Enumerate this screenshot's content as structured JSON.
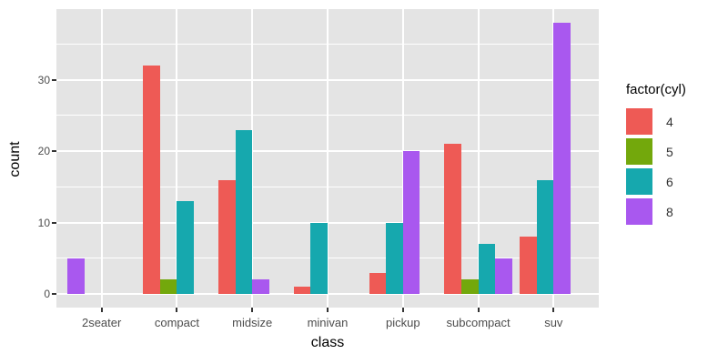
{
  "chart_data": {
    "type": "bar",
    "title": "",
    "xlabel": "class",
    "ylabel": "count",
    "categories": [
      "2seater",
      "compact",
      "midsize",
      "minivan",
      "pickup",
      "subcompact",
      "suv"
    ],
    "series": [
      {
        "name": "4",
        "color": "#EE5A55",
        "values": [
          null,
          32,
          16,
          1,
          3,
          21,
          8
        ]
      },
      {
        "name": "5",
        "color": "#73A80C",
        "values": [
          null,
          2,
          null,
          null,
          null,
          2,
          null
        ]
      },
      {
        "name": "6",
        "color": "#16A8AE",
        "values": [
          null,
          13,
          23,
          10,
          10,
          7,
          16
        ]
      },
      {
        "name": "8",
        "color": "#A958EF",
        "values": [
          5,
          null,
          2,
          null,
          20,
          5,
          38
        ]
      }
    ],
    "y_ticks": [
      0,
      10,
      20,
      30
    ],
    "y_minor_ticks": [
      5,
      15,
      25,
      35
    ],
    "ylim": [
      -1.9,
      39.9
    ],
    "legend": {
      "title": "factor(cyl)",
      "position": "right",
      "entries": [
        "4",
        "5",
        "6",
        "8"
      ]
    },
    "grid": true,
    "bar_layout": "dodge-packed",
    "panel_bg": "#E4E4E4",
    "grid_color": "#FFFFFF",
    "tick_label_color": "#4D4D4D",
    "axis_title_color": "#000000"
  }
}
